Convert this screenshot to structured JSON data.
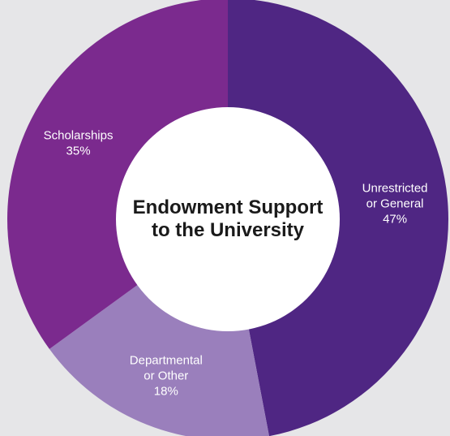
{
  "chart_data": {
    "type": "pie",
    "title": "Endowment Support to the University",
    "categories": [
      "Unrestricted or General",
      "Departmental or Other",
      "Scholarships"
    ],
    "values": [
      47,
      18,
      35
    ],
    "value_labels": [
      "47%",
      "18%",
      "35%"
    ],
    "label_lines": [
      [
        "Unrestricted",
        "or General",
        "47%"
      ],
      [
        "Departmental",
        "or Other",
        "18%"
      ],
      [
        "Scholarships",
        "35%"
      ]
    ],
    "colors": [
      "#4f2683",
      "#9a7fbc",
      "#7b2a8e"
    ],
    "background": "#e6e6e8",
    "center_color": "#ffffff",
    "start_angle_deg": 0,
    "direction": "clockwise"
  }
}
